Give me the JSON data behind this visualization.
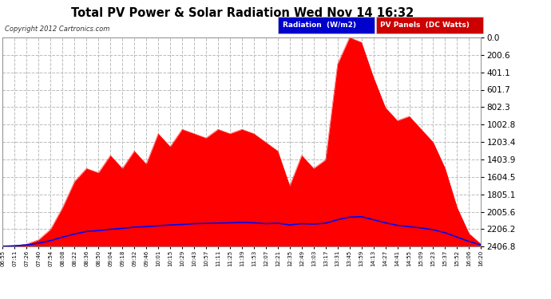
{
  "title": "Total PV Power & Solar Radiation Wed Nov 14 16:32",
  "copyright": "Copyright 2012 Cartronics.com",
  "legend_radiation": "Radiation  (W/m2)",
  "legend_pv": "PV Panels  (DC Watts)",
  "fig_bg_color": "#ffffff",
  "plot_bg_color": "#ffffff",
  "grid_color": "#aaaaaa",
  "pv_fill_color": "#ff0000",
  "pv_line_color": "#ff0000",
  "radiation_line_color": "#0000ee",
  "title_color": "#000000",
  "ylabel_right": [
    "2406.8",
    "2206.2",
    "2005.6",
    "1805.1",
    "1604.5",
    "1403.9",
    "1203.4",
    "1002.8",
    "802.3",
    "601.7",
    "401.1",
    "200.6",
    "0.0"
  ],
  "ymax": 2406.8,
  "ymin": 0.0,
  "yticks": [
    0.0,
    200.6,
    401.1,
    601.7,
    802.3,
    1002.8,
    1203.4,
    1403.9,
    1604.5,
    1805.1,
    2005.6,
    2206.2,
    2406.8
  ],
  "time_labels": [
    "06:55",
    "07:11",
    "07:26",
    "07:40",
    "07:54",
    "08:08",
    "08:22",
    "08:36",
    "08:50",
    "09:04",
    "09:18",
    "09:32",
    "09:46",
    "10:01",
    "10:15",
    "10:29",
    "10:43",
    "10:57",
    "11:11",
    "11:25",
    "11:39",
    "11:53",
    "12:07",
    "12:21",
    "12:35",
    "12:49",
    "13:03",
    "13:17",
    "13:31",
    "13:45",
    "13:59",
    "14:13",
    "14:27",
    "14:41",
    "14:55",
    "15:09",
    "15:23",
    "15:37",
    "15:52",
    "16:06",
    "16:20"
  ],
  "pv_data": [
    5,
    10,
    30,
    80,
    200,
    450,
    750,
    900,
    850,
    1050,
    900,
    1100,
    950,
    1300,
    1150,
    1350,
    1300,
    1250,
    1350,
    1300,
    1350,
    1300,
    1200,
    1100,
    700,
    1050,
    900,
    1000,
    2100,
    2406,
    2350,
    1950,
    1600,
    1450,
    1500,
    1350,
    1200,
    900,
    450,
    150,
    30
  ],
  "radiation_data": [
    5,
    10,
    20,
    40,
    70,
    110,
    145,
    175,
    185,
    200,
    210,
    225,
    230,
    240,
    250,
    255,
    265,
    268,
    272,
    275,
    278,
    275,
    265,
    270,
    250,
    265,
    260,
    270,
    310,
    340,
    345,
    310,
    275,
    245,
    230,
    215,
    195,
    160,
    110,
    60,
    20
  ]
}
